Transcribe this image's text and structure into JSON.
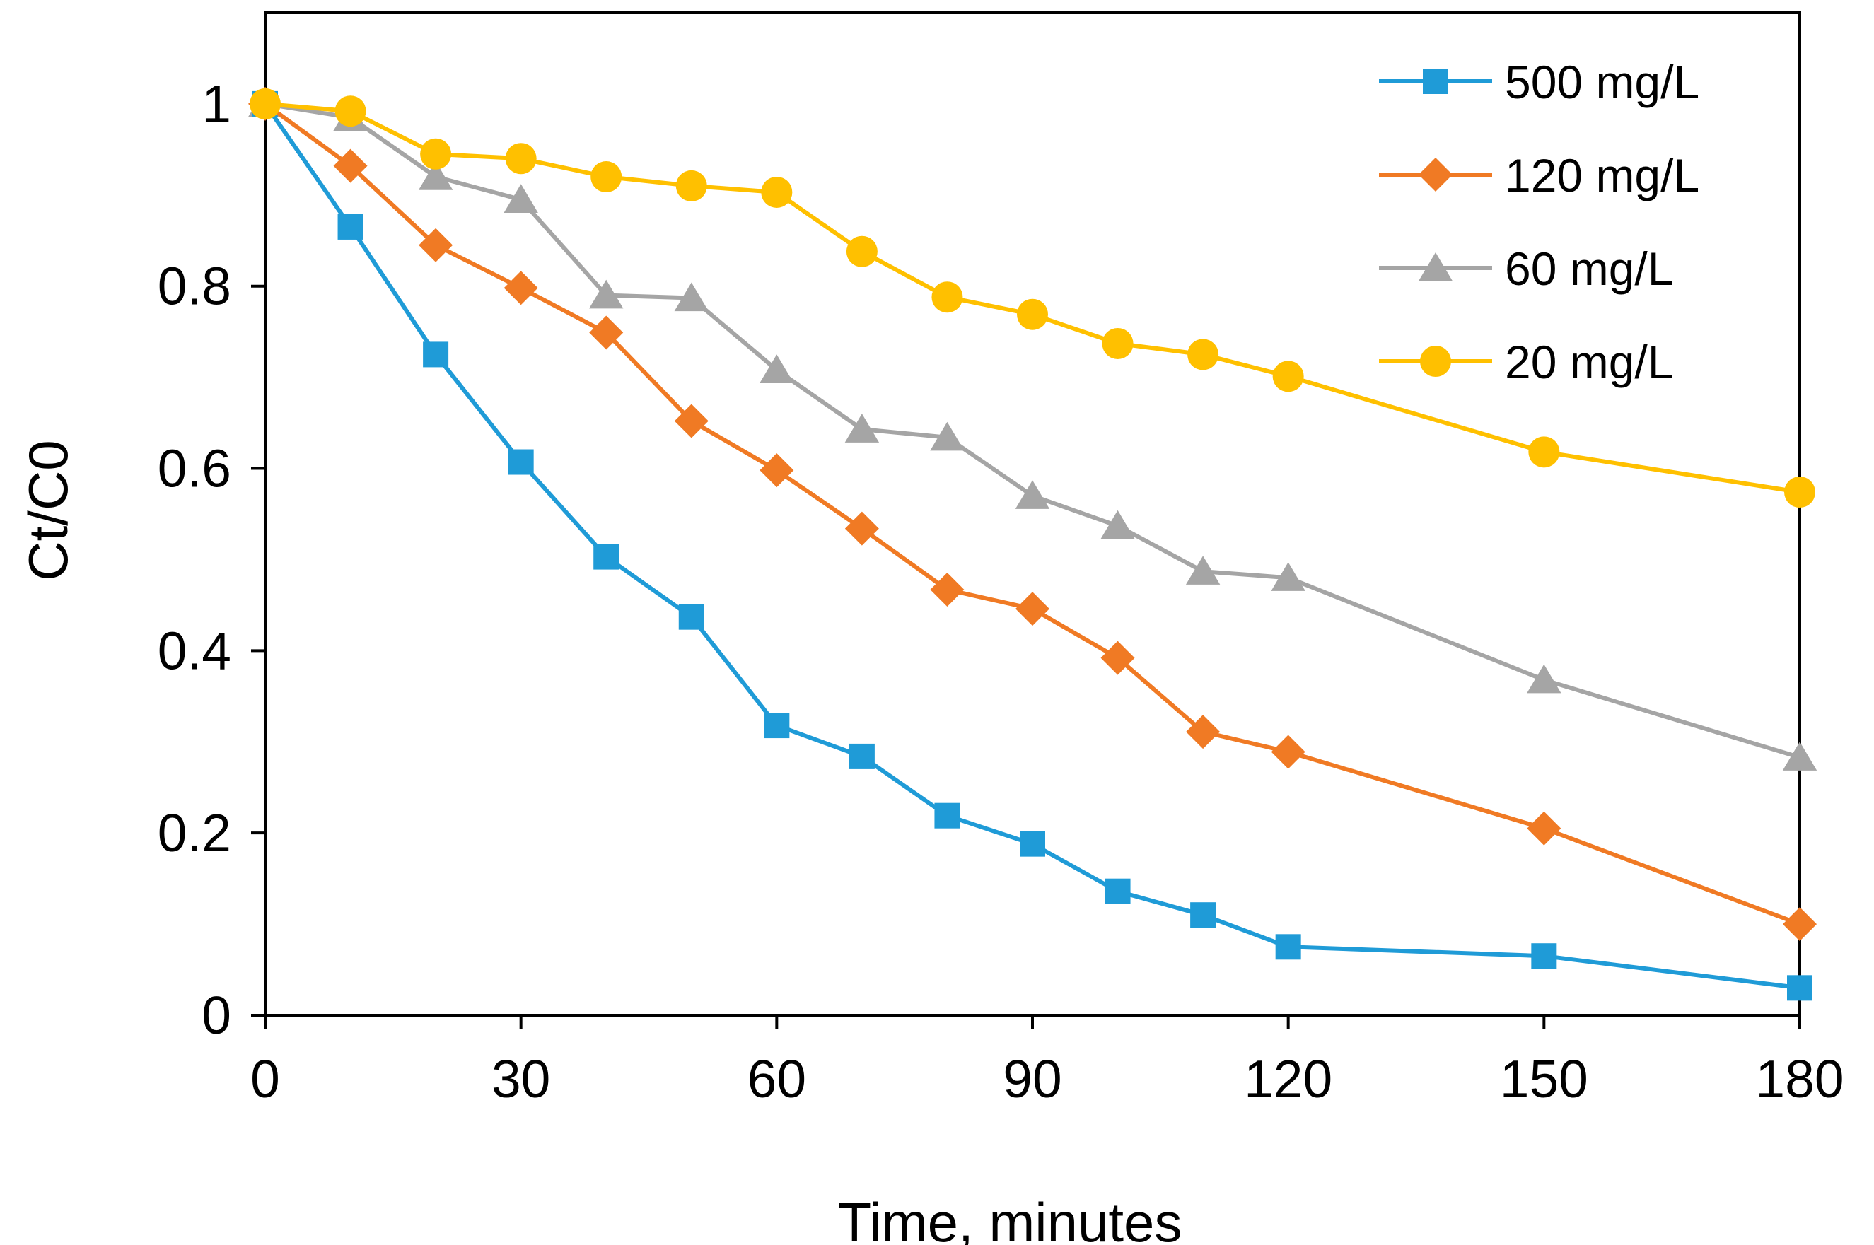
{
  "chart_data": {
    "type": "line",
    "title": "",
    "xlabel": "Time, minutes",
    "ylabel": "Ct/C0",
    "xlim": [
      0,
      180
    ],
    "ylim": [
      0,
      1.1
    ],
    "xticks": [
      0,
      30,
      60,
      90,
      120,
      150,
      180
    ],
    "xtick_labels": [
      "0",
      "30",
      "60",
      "90",
      "120",
      "150",
      "180"
    ],
    "yticks": [
      0,
      0.2,
      0.4,
      0.6,
      0.8,
      1
    ],
    "ytick_labels": [
      "0",
      "0.2",
      "0.4",
      "0.6",
      "0.8",
      "1"
    ],
    "grid": false,
    "legend_position": "top-right",
    "x": [
      0,
      10,
      20,
      30,
      40,
      50,
      60,
      70,
      80,
      90,
      100,
      110,
      120,
      150,
      180
    ],
    "series": [
      {
        "name": "500 mg/L",
        "color": "#1F9BD7",
        "marker": "square",
        "values": [
          1.0,
          0.865,
          0.725,
          0.607,
          0.503,
          0.437,
          0.318,
          0.284,
          0.219,
          0.188,
          0.136,
          0.11,
          0.075,
          0.065,
          0.03
        ]
      },
      {
        "name": "120 mg/L",
        "color": "#F07A24",
        "marker": "diamond",
        "values": [
          1.0,
          0.932,
          0.845,
          0.798,
          0.749,
          0.652,
          0.598,
          0.534,
          0.467,
          0.446,
          0.392,
          0.311,
          0.289,
          0.205,
          0.1
        ]
      },
      {
        "name": "60 mg/L",
        "color": "#A5A5A5",
        "marker": "triangle",
        "values": [
          1.0,
          0.985,
          0.92,
          0.895,
          0.79,
          0.787,
          0.708,
          0.643,
          0.634,
          0.57,
          0.537,
          0.487,
          0.48,
          0.368,
          0.283
        ]
      },
      {
        "name": "20 mg/L",
        "color": "#FFC000",
        "marker": "circle",
        "values": [
          1.0,
          0.992,
          0.945,
          0.94,
          0.92,
          0.91,
          0.903,
          0.838,
          0.788,
          0.769,
          0.737,
          0.725,
          0.701,
          0.618,
          0.574
        ]
      }
    ]
  }
}
